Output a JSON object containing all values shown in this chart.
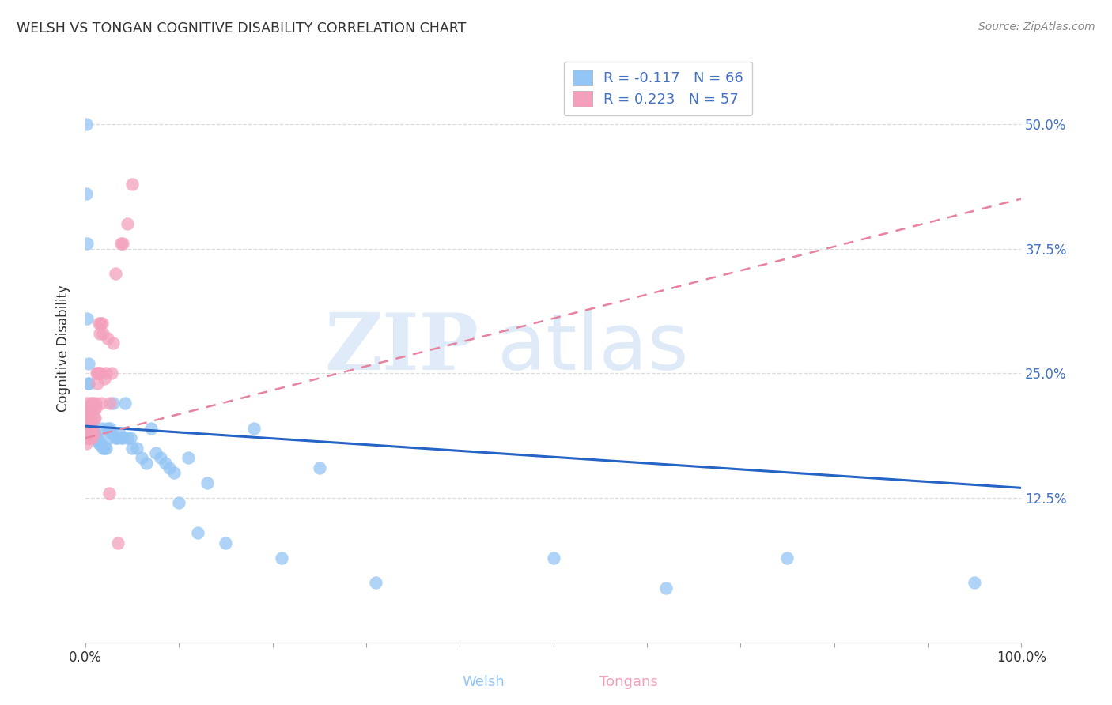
{
  "title": "WELSH VS TONGAN COGNITIVE DISABILITY CORRELATION CHART",
  "source": "Source: ZipAtlas.com",
  "ylabel": "Cognitive Disability",
  "ytick_labels": [
    "12.5%",
    "25.0%",
    "37.5%",
    "50.0%"
  ],
  "ytick_values": [
    0.125,
    0.25,
    0.375,
    0.5
  ],
  "xlim": [
    0.0,
    1.0
  ],
  "ylim": [
    -0.02,
    0.57
  ],
  "welsh_R": -0.117,
  "welsh_N": 66,
  "tongan_R": 0.223,
  "tongan_N": 57,
  "welsh_color": "#93C5F5",
  "tongan_color": "#F4A0BC",
  "welsh_line_color": "#2563C4",
  "tongan_line_color": "#E8839F",
  "legend_text_color": "#4472C4",
  "welsh_x": [
    0.001,
    0.001,
    0.002,
    0.002,
    0.003,
    0.003,
    0.003,
    0.004,
    0.004,
    0.005,
    0.005,
    0.006,
    0.006,
    0.007,
    0.007,
    0.008,
    0.009,
    0.01,
    0.01,
    0.011,
    0.012,
    0.013,
    0.014,
    0.015,
    0.016,
    0.017,
    0.018,
    0.019,
    0.02,
    0.022,
    0.024,
    0.025,
    0.026,
    0.028,
    0.03,
    0.032,
    0.034,
    0.036,
    0.038,
    0.04,
    0.042,
    0.045,
    0.048,
    0.05,
    0.055,
    0.06,
    0.065,
    0.07,
    0.075,
    0.08,
    0.085,
    0.09,
    0.095,
    0.1,
    0.11,
    0.12,
    0.13,
    0.15,
    0.18,
    0.21,
    0.25,
    0.31,
    0.5,
    0.62,
    0.75,
    0.95
  ],
  "welsh_y": [
    0.5,
    0.43,
    0.38,
    0.305,
    0.26,
    0.24,
    0.24,
    0.215,
    0.215,
    0.205,
    0.2,
    0.2,
    0.2,
    0.195,
    0.19,
    0.19,
    0.19,
    0.19,
    0.185,
    0.185,
    0.185,
    0.185,
    0.18,
    0.18,
    0.18,
    0.178,
    0.195,
    0.175,
    0.175,
    0.175,
    0.195,
    0.185,
    0.195,
    0.19,
    0.22,
    0.185,
    0.185,
    0.19,
    0.185,
    0.185,
    0.22,
    0.185,
    0.185,
    0.175,
    0.175,
    0.165,
    0.16,
    0.195,
    0.17,
    0.165,
    0.16,
    0.155,
    0.15,
    0.12,
    0.165,
    0.09,
    0.14,
    0.08,
    0.195,
    0.065,
    0.155,
    0.04,
    0.065,
    0.035,
    0.065,
    0.04
  ],
  "tongan_x": [
    0.001,
    0.001,
    0.001,
    0.001,
    0.002,
    0.002,
    0.002,
    0.002,
    0.003,
    0.003,
    0.003,
    0.003,
    0.004,
    0.004,
    0.004,
    0.004,
    0.005,
    0.005,
    0.005,
    0.005,
    0.006,
    0.006,
    0.006,
    0.007,
    0.007,
    0.008,
    0.008,
    0.009,
    0.009,
    0.01,
    0.01,
    0.011,
    0.011,
    0.012,
    0.013,
    0.013,
    0.014,
    0.014,
    0.015,
    0.016,
    0.016,
    0.017,
    0.018,
    0.019,
    0.02,
    0.022,
    0.024,
    0.025,
    0.026,
    0.028,
    0.03,
    0.032,
    0.035,
    0.038,
    0.04,
    0.045,
    0.05
  ],
  "tongan_y": [
    0.195,
    0.19,
    0.185,
    0.18,
    0.22,
    0.215,
    0.2,
    0.19,
    0.21,
    0.205,
    0.2,
    0.19,
    0.195,
    0.19,
    0.185,
    0.185,
    0.215,
    0.205,
    0.195,
    0.185,
    0.22,
    0.215,
    0.2,
    0.195,
    0.185,
    0.22,
    0.215,
    0.205,
    0.19,
    0.215,
    0.205,
    0.22,
    0.215,
    0.25,
    0.25,
    0.24,
    0.3,
    0.25,
    0.29,
    0.3,
    0.25,
    0.22,
    0.3,
    0.29,
    0.245,
    0.25,
    0.285,
    0.13,
    0.22,
    0.25,
    0.28,
    0.35,
    0.08,
    0.38,
    0.38,
    0.4,
    0.44
  ],
  "welsh_line_x": [
    0.0,
    1.0
  ],
  "welsh_line_y": [
    0.197,
    0.135
  ],
  "tongan_line_x": [
    0.0,
    1.0
  ],
  "tongan_line_y": [
    0.185,
    0.425
  ],
  "background_color": "#FFFFFF",
  "grid_color": "#DDDDDD",
  "watermark_zip": "ZIP",
  "watermark_atlas": "atlas"
}
